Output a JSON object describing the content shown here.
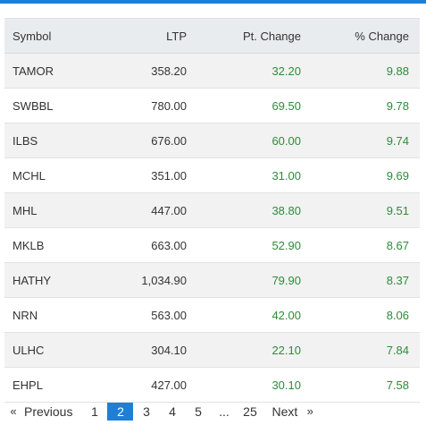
{
  "colors": {
    "accent": "#1f7fd4",
    "positive": "#2e8b3a",
    "header_bg": "#e9ecef",
    "stripe_bg": "#f2f2f2"
  },
  "table": {
    "columns": [
      "Symbol",
      "LTP",
      "Pt. Change",
      "% Change"
    ],
    "rows": [
      {
        "symbol": "TAMOR",
        "ltp": "358.20",
        "pt_change": "32.20",
        "pct_change": "9.88"
      },
      {
        "symbol": "SWBBL",
        "ltp": "780.00",
        "pt_change": "69.50",
        "pct_change": "9.78"
      },
      {
        "symbol": "ILBS",
        "ltp": "676.00",
        "pt_change": "60.00",
        "pct_change": "9.74"
      },
      {
        "symbol": "MCHL",
        "ltp": "351.00",
        "pt_change": "31.00",
        "pct_change": "9.69"
      },
      {
        "symbol": "MHL",
        "ltp": "447.00",
        "pt_change": "38.80",
        "pct_change": "9.51"
      },
      {
        "symbol": "MKLB",
        "ltp": "663.00",
        "pt_change": "52.90",
        "pct_change": "8.67"
      },
      {
        "symbol": "HATHY",
        "ltp": "1,034.90",
        "pt_change": "79.90",
        "pct_change": "8.37"
      },
      {
        "symbol": "NRN",
        "ltp": "563.00",
        "pt_change": "42.00",
        "pct_change": "8.06"
      },
      {
        "symbol": "ULHC",
        "ltp": "304.10",
        "pt_change": "22.10",
        "pct_change": "7.84"
      },
      {
        "symbol": "EHPL",
        "ltp": "427.00",
        "pt_change": "30.10",
        "pct_change": "7.58"
      }
    ]
  },
  "pagination": {
    "first_arrow": "«",
    "previous_label": "Previous",
    "pages": [
      "1",
      "2",
      "3",
      "4",
      "5"
    ],
    "current_page": "2",
    "ellipsis": "...",
    "last_page": "25",
    "next_label": "Next",
    "last_arrow": "»"
  }
}
